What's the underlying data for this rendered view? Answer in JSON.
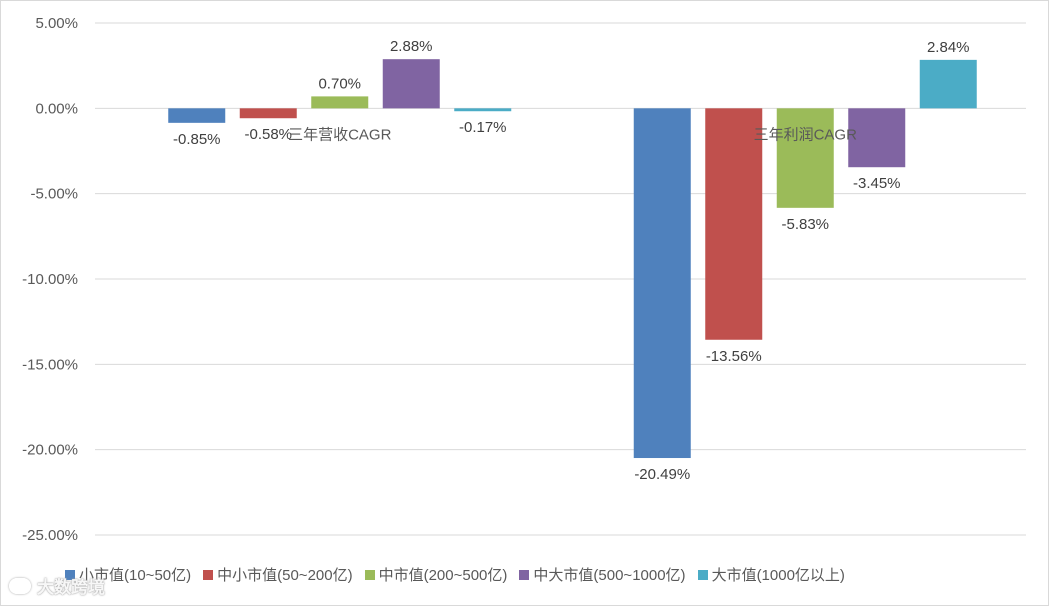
{
  "chart_data": {
    "type": "bar",
    "title": "",
    "xlabel": "",
    "ylabel": "",
    "ylim": [
      -25,
      5
    ],
    "yticks": [
      5,
      0,
      -5,
      -10,
      -15,
      -20,
      -25
    ],
    "ytick_labels": [
      "5.00%",
      "0.00%",
      "-5.00%",
      "-10.00%",
      "-15.00%",
      "-20.00%",
      "-25.00%"
    ],
    "grid": true,
    "legend_position": "bottom",
    "categories": [
      "三年营收CAGR",
      "三年利润CAGR"
    ],
    "series": [
      {
        "name": "小市值(10~50亿)",
        "color": "#4f81bd",
        "values": [
          -0.85,
          -20.49
        ],
        "labels": [
          "-0.85%",
          "-20.49%"
        ]
      },
      {
        "name": "中小市值(50~200亿)",
        "color": "#c0504d",
        "values": [
          -0.58,
          -13.56
        ],
        "labels": [
          "-0.58%",
          "-13.56%"
        ]
      },
      {
        "name": "中市值(200~500亿)",
        "color": "#9bbb59",
        "values": [
          0.7,
          -5.83
        ],
        "labels": [
          "0.70%",
          "-5.83%"
        ]
      },
      {
        "name": "中大市值(500~1000亿)",
        "color": "#8064a2",
        "values": [
          2.88,
          -3.45
        ],
        "labels": [
          "2.88%",
          "-3.45%"
        ]
      },
      {
        "name": "大市值(1000亿以上)",
        "color": "#4bacc6",
        "values": [
          -0.17,
          2.84
        ],
        "labels": [
          "-0.17%",
          "2.84%"
        ]
      }
    ]
  },
  "watermark": {
    "text": "大数跨境"
  }
}
